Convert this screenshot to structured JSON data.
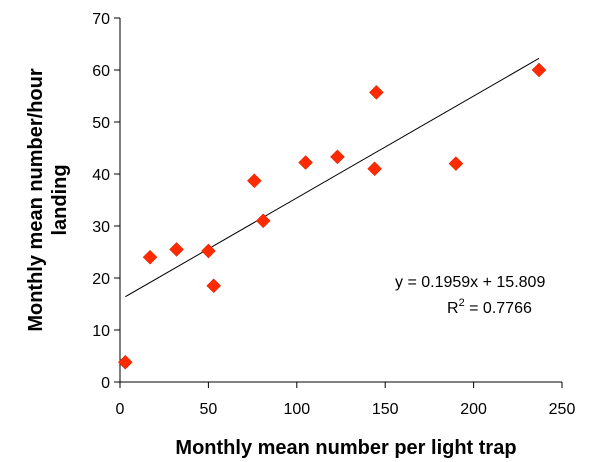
{
  "chart_data": {
    "type": "scatter",
    "title": "",
    "xlabel": "Monthly mean number per light trap",
    "ylabel_line1": "Monthly mean number/hour",
    "ylabel_line2": "landing",
    "xlim": [
      0,
      250
    ],
    "ylim": [
      0,
      70
    ],
    "xticks": [
      0,
      50,
      100,
      150,
      200,
      250
    ],
    "yticks": [
      0,
      10,
      20,
      30,
      40,
      50,
      60,
      70
    ],
    "grid": false,
    "marker": "diamond",
    "marker_color": "#ff2a00",
    "points": [
      {
        "x": 3,
        "y": 3.8
      },
      {
        "x": 17,
        "y": 24
      },
      {
        "x": 32,
        "y": 25.5
      },
      {
        "x": 50,
        "y": 25.2
      },
      {
        "x": 53,
        "y": 18.5
      },
      {
        "x": 76,
        "y": 38.7
      },
      {
        "x": 81,
        "y": 31
      },
      {
        "x": 105,
        "y": 42.2
      },
      {
        "x": 123,
        "y": 43.3
      },
      {
        "x": 144,
        "y": 41
      },
      {
        "x": 145,
        "y": 55.7
      },
      {
        "x": 190,
        "y": 42
      },
      {
        "x": 237,
        "y": 60
      }
    ],
    "trendline": {
      "slope": 0.1959,
      "intercept": 15.809,
      "x_range": [
        3,
        237
      ],
      "color": "#000000"
    },
    "annotations": {
      "equation": "y = 0.1959x + 15.809",
      "r2_prefix": "R",
      "r2_sup": "2",
      "r2_suffix": " = 0.7766"
    }
  }
}
